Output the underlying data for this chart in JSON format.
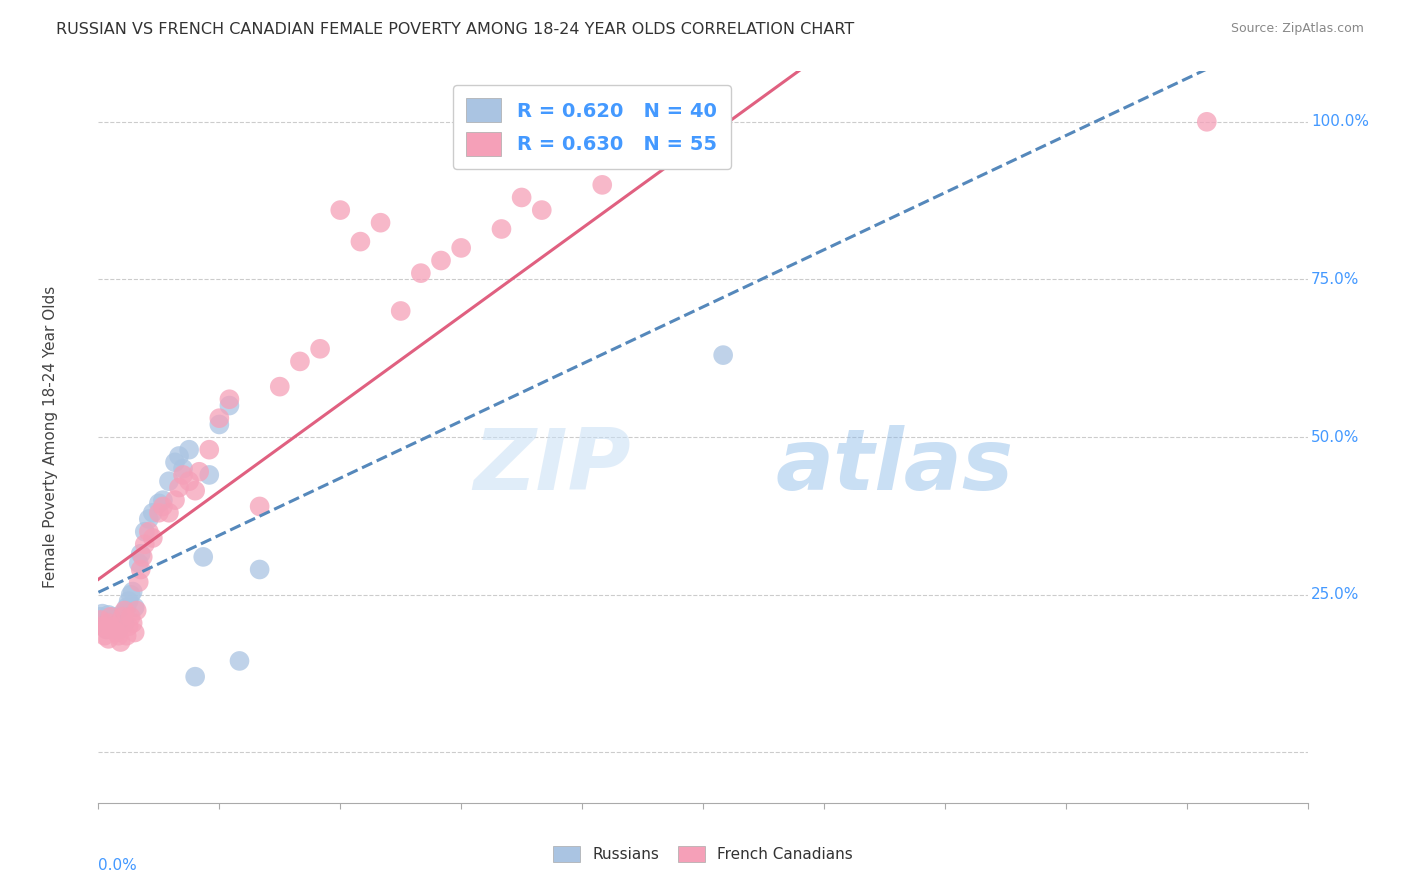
{
  "title": "RUSSIAN VS FRENCH CANADIAN FEMALE POVERTY AMONG 18-24 YEAR OLDS CORRELATION CHART",
  "source": "Source: ZipAtlas.com",
  "ylabel": "Female Poverty Among 18-24 Year Olds",
  "watermark_zip": "ZIP",
  "watermark_atlas": "atlas",
  "russian_R": 0.62,
  "russian_N": 40,
  "french_R": 0.63,
  "french_N": 55,
  "russian_color": "#aac4e2",
  "french_color": "#f5a0b8",
  "russian_line_color": "#5588bb",
  "french_line_color": "#e06080",
  "axis_label_color": "#4499ff",
  "background_color": "#ffffff",
  "xmin": 0.0,
  "xmax": 0.6,
  "ymin": -0.08,
  "ymax": 1.08,
  "russians_x": [
    0.001,
    0.002,
    0.003,
    0.004,
    0.005,
    0.005,
    0.006,
    0.007,
    0.008,
    0.009,
    0.01,
    0.01,
    0.011,
    0.012,
    0.013,
    0.014,
    0.015,
    0.016,
    0.017,
    0.018,
    0.02,
    0.021,
    0.023,
    0.025,
    0.027,
    0.03,
    0.032,
    0.035,
    0.038,
    0.04,
    0.042,
    0.045,
    0.048,
    0.052,
    0.055,
    0.06,
    0.065,
    0.07,
    0.08,
    0.31
  ],
  "russians_y": [
    0.215,
    0.22,
    0.2,
    0.195,
    0.205,
    0.218,
    0.21,
    0.215,
    0.195,
    0.2,
    0.195,
    0.205,
    0.215,
    0.22,
    0.205,
    0.23,
    0.24,
    0.25,
    0.255,
    0.23,
    0.3,
    0.315,
    0.35,
    0.37,
    0.38,
    0.395,
    0.4,
    0.43,
    0.46,
    0.47,
    0.45,
    0.48,
    0.12,
    0.31,
    0.44,
    0.52,
    0.55,
    0.145,
    0.29,
    0.63
  ],
  "french_x": [
    0.001,
    0.002,
    0.003,
    0.004,
    0.005,
    0.005,
    0.006,
    0.007,
    0.008,
    0.009,
    0.01,
    0.011,
    0.012,
    0.013,
    0.014,
    0.015,
    0.016,
    0.017,
    0.018,
    0.019,
    0.02,
    0.021,
    0.022,
    0.023,
    0.025,
    0.027,
    0.03,
    0.032,
    0.035,
    0.038,
    0.04,
    0.042,
    0.045,
    0.048,
    0.05,
    0.055,
    0.06,
    0.065,
    0.08,
    0.09,
    0.1,
    0.11,
    0.12,
    0.13,
    0.14,
    0.15,
    0.16,
    0.17,
    0.18,
    0.2,
    0.21,
    0.22,
    0.25,
    0.28,
    0.55
  ],
  "french_y": [
    0.21,
    0.2,
    0.185,
    0.195,
    0.205,
    0.18,
    0.215,
    0.195,
    0.2,
    0.19,
    0.185,
    0.175,
    0.215,
    0.225,
    0.185,
    0.2,
    0.215,
    0.205,
    0.19,
    0.225,
    0.27,
    0.29,
    0.31,
    0.33,
    0.35,
    0.34,
    0.38,
    0.39,
    0.38,
    0.4,
    0.42,
    0.44,
    0.43,
    0.415,
    0.445,
    0.48,
    0.53,
    0.56,
    0.39,
    0.58,
    0.62,
    0.64,
    0.86,
    0.81,
    0.84,
    0.7,
    0.76,
    0.78,
    0.8,
    0.83,
    0.88,
    0.86,
    0.9,
    1.0,
    1.0
  ],
  "ytick_positions": [
    0.0,
    0.25,
    0.5,
    0.75,
    1.0
  ],
  "ytick_labels": [
    "",
    "25.0%",
    "50.0%",
    "75.0%",
    "100.0%"
  ],
  "xtick_labels_x": [
    0.0,
    0.06,
    0.12,
    0.18,
    0.24,
    0.3,
    0.36,
    0.42,
    0.48,
    0.54,
    0.6
  ]
}
